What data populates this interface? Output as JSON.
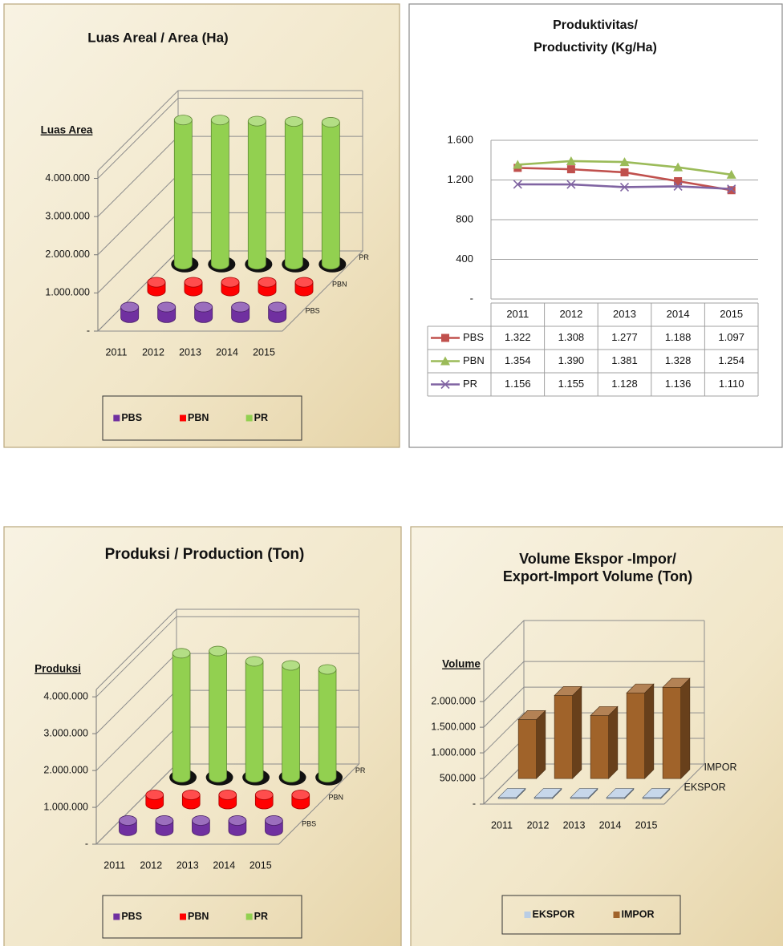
{
  "chart_data": [
    {
      "type": "bar3d",
      "title": "Luas Areal / Area (Ha)",
      "y_label": "Luas Area",
      "bar_shape": "cylinder",
      "categories": [
        "2011",
        "2012",
        "2013",
        "2014",
        "2015"
      ],
      "series": [
        {
          "name": "PBS",
          "color": "#7030a0",
          "values": [
            280000,
            280000,
            280000,
            280000,
            280000
          ]
        },
        {
          "name": "PBN",
          "color": "#ff0000",
          "values": [
            230000,
            230000,
            230000,
            230000,
            230000
          ]
        },
        {
          "name": "PR",
          "color": "#92d050",
          "values": [
            3780000,
            3780000,
            3750000,
            3740000,
            3720000
          ]
        }
      ],
      "ylim": [
        0,
        4200000
      ],
      "yticks": [
        {
          "value": 0,
          "label": "-"
        },
        {
          "value": 1000000,
          "label": "1.000.000"
        },
        {
          "value": 2000000,
          "label": "2.000.000"
        },
        {
          "value": 3000000,
          "label": "3.000.000"
        },
        {
          "value": 4000000,
          "label": "4.000.000"
        }
      ]
    },
    {
      "type": "line",
      "title": [
        "Produktivitas/",
        "Productivity (Kg/Ha)"
      ],
      "categories": [
        "2011",
        "2012",
        "2013",
        "2014",
        "2015"
      ],
      "series": [
        {
          "name": "PBS",
          "color": "#c0504d",
          "marker": "square",
          "values": [
            1322,
            1308,
            1277,
            1188,
            1097
          ],
          "value_labels": [
            "1.322",
            "1.308",
            "1.277",
            "1.188",
            "1.097"
          ]
        },
        {
          "name": "PBN",
          "color": "#9bbb59",
          "marker": "triangle",
          "values": [
            1354,
            1390,
            1381,
            1328,
            1254
          ],
          "value_labels": [
            "1.354",
            "1.390",
            "1.381",
            "1.328",
            "1.254"
          ]
        },
        {
          "name": "PR",
          "color": "#8064a2",
          "marker": "x",
          "values": [
            1156,
            1155,
            1128,
            1136,
            1110
          ],
          "value_labels": [
            "1.156",
            "1.155",
            "1.128",
            "1.136",
            "1.110"
          ]
        }
      ],
      "ylim": [
        0,
        1600
      ],
      "yticks": [
        {
          "value": 0,
          "label": "-"
        },
        400,
        800,
        {
          "value": 1200,
          "label": "1.200"
        },
        {
          "value": 1600,
          "label": "1.600"
        }
      ],
      "grid": true
    },
    {
      "type": "bar3d",
      "title": "Produksi / Production (Ton)",
      "y_label": "Produksi",
      "bar_shape": "cylinder",
      "categories": [
        "2011",
        "2012",
        "2013",
        "2014",
        "2015"
      ],
      "series": [
        {
          "name": "PBS",
          "color": "#7030a0",
          "values": [
            280000,
            280000,
            280000,
            280000,
            280000
          ]
        },
        {
          "name": "PBN",
          "color": "#ff0000",
          "values": [
            250000,
            250000,
            250000,
            250000,
            250000
          ]
        },
        {
          "name": "PR",
          "color": "#92d050",
          "values": [
            3370000,
            3430000,
            3150000,
            3040000,
            2930000
          ]
        }
      ],
      "ylim": [
        0,
        4200000
      ],
      "yticks": [
        {
          "value": 0,
          "label": "-"
        },
        {
          "value": 1000000,
          "label": "1.000.000"
        },
        {
          "value": 2000000,
          "label": "2.000.000"
        },
        {
          "value": 3000000,
          "label": "3.000.000"
        },
        {
          "value": 4000000,
          "label": "4.000.000"
        }
      ]
    },
    {
      "type": "bar3d",
      "title": [
        "Volume Ekspor -Impor/",
        "Export-Import Volume (Ton)"
      ],
      "y_label": "Volume",
      "bar_shape": "box",
      "categories": [
        "2011",
        "2012",
        "2013",
        "2014",
        "2015"
      ],
      "series": [
        {
          "name": "EKSPOR",
          "color": "#b9cde5",
          "values": [
            20000,
            20000,
            20000,
            20000,
            20000
          ]
        },
        {
          "name": "IMPOR",
          "color": "#a0632a",
          "values": [
            1150000,
            1620000,
            1230000,
            1670000,
            1780000
          ]
        }
      ],
      "ylim": [
        0,
        2800000
      ],
      "yticks": [
        {
          "value": 0,
          "label": "-"
        },
        {
          "value": 500000,
          "label": "500.000"
        },
        {
          "value": 1000000,
          "label": "1.000.000"
        },
        {
          "value": 1500000,
          "label": "1.500.000"
        },
        {
          "value": 2000000,
          "label": "2.000.000"
        }
      ]
    }
  ]
}
